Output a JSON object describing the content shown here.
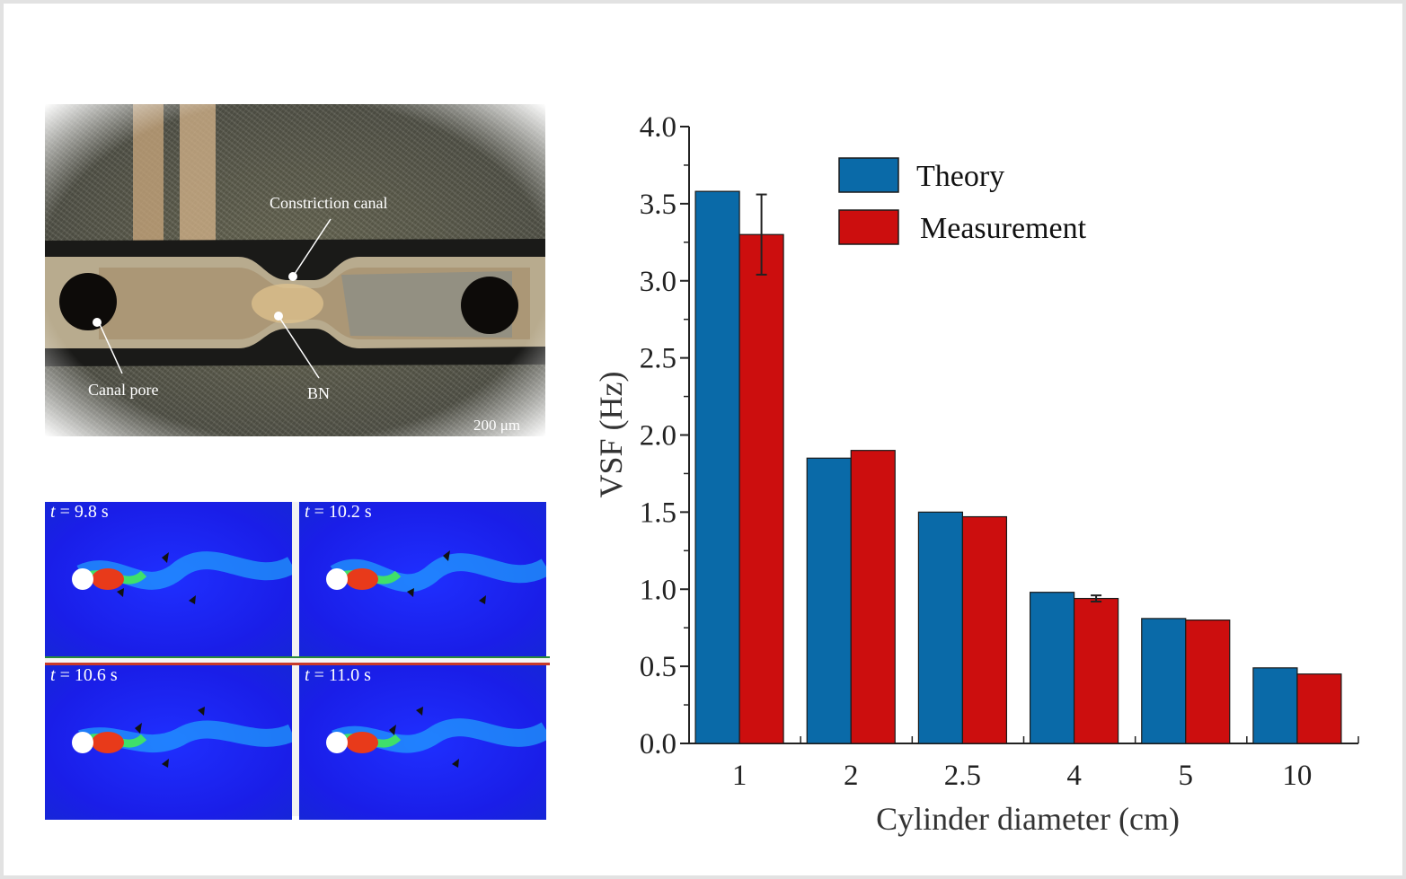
{
  "micrograph": {
    "labels": {
      "constriction": "Constriction canal",
      "pore": "Canal pore",
      "bn": "BN",
      "scale": "200 μm"
    }
  },
  "simulation": {
    "frames": [
      {
        "t_symbol": "t",
        "t_rest": " = 9.8 s"
      },
      {
        "t_symbol": "t",
        "t_rest": " = 10.2 s"
      },
      {
        "t_symbol": "t",
        "t_rest": " = 10.6 s"
      },
      {
        "t_symbol": "t",
        "t_rest": " = 11.0 s"
      }
    ]
  },
  "chart_data": {
    "type": "bar",
    "xlabel": "Cylinder diameter (cm)",
    "ylabel": "VSF (Hz)",
    "categories": [
      "1",
      "2",
      "2.5",
      "4",
      "5",
      "10"
    ],
    "ylim": [
      0,
      4.0
    ],
    "yticks": [
      "0.0",
      "0.5",
      "1.0",
      "1.5",
      "2.0",
      "2.5",
      "3.0",
      "3.5",
      "4.0"
    ],
    "legend_position": "top-center",
    "series": [
      {
        "name": "Theory",
        "color": "#0a6aa8",
        "values": [
          3.58,
          1.85,
          1.5,
          0.98,
          0.81,
          0.49
        ]
      },
      {
        "name": "Measurement",
        "color": "#cc0e0e",
        "values": [
          3.3,
          1.9,
          1.47,
          0.94,
          0.8,
          0.45
        ],
        "errors": [
          0.26,
          0.0,
          0.0,
          0.02,
          0.0,
          0.0
        ]
      }
    ]
  }
}
